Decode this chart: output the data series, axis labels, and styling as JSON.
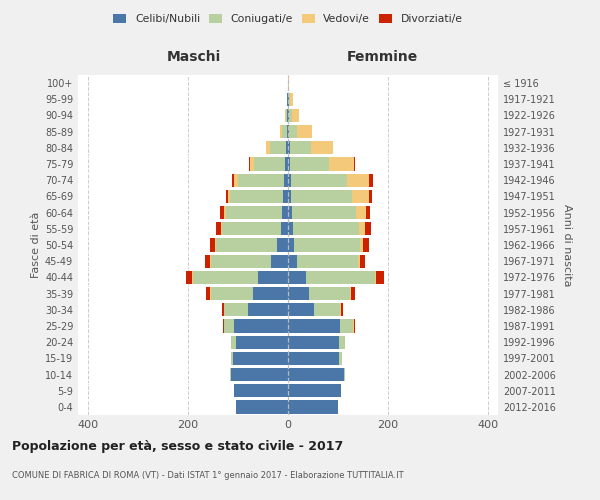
{
  "age_groups": [
    "0-4",
    "5-9",
    "10-14",
    "15-19",
    "20-24",
    "25-29",
    "30-34",
    "35-39",
    "40-44",
    "45-49",
    "50-54",
    "55-59",
    "60-64",
    "65-69",
    "70-74",
    "75-79",
    "80-84",
    "85-89",
    "90-94",
    "95-99",
    "100+"
  ],
  "birth_years": [
    "2012-2016",
    "2007-2011",
    "2002-2006",
    "1997-2001",
    "1992-1996",
    "1987-1991",
    "1982-1986",
    "1977-1981",
    "1972-1976",
    "1967-1971",
    "1962-1966",
    "1957-1961",
    "1952-1956",
    "1947-1951",
    "1942-1946",
    "1937-1941",
    "1932-1936",
    "1927-1931",
    "1922-1926",
    "1917-1921",
    "≤ 1916"
  ],
  "males": {
    "celibi": [
      105,
      108,
      115,
      110,
      105,
      108,
      80,
      70,
      60,
      35,
      22,
      15,
      13,
      10,
      8,
      6,
      4,
      3,
      2,
      2,
      0
    ],
    "coniugati": [
      0,
      1,
      2,
      5,
      10,
      20,
      48,
      85,
      130,
      120,
      122,
      118,
      112,
      107,
      92,
      62,
      32,
      9,
      3,
      0,
      0
    ],
    "vedovi": [
      0,
      0,
      0,
      0,
      0,
      0,
      1,
      1,
      2,
      2,
      2,
      2,
      3,
      3,
      8,
      8,
      8,
      4,
      2,
      0,
      0
    ],
    "divorziati": [
      0,
      0,
      0,
      0,
      0,
      2,
      3,
      8,
      12,
      10,
      10,
      10,
      8,
      5,
      5,
      2,
      0,
      0,
      0,
      0,
      0
    ]
  },
  "females": {
    "nubili": [
      100,
      105,
      112,
      102,
      102,
      103,
      52,
      42,
      35,
      18,
      12,
      10,
      8,
      5,
      5,
      4,
      3,
      2,
      2,
      2,
      0
    ],
    "coniugate": [
      0,
      1,
      2,
      5,
      12,
      27,
      52,
      82,
      138,
      122,
      132,
      132,
      127,
      122,
      112,
      77,
      42,
      15,
      5,
      2,
      0
    ],
    "vedove": [
      0,
      0,
      0,
      0,
      0,
      1,
      1,
      2,
      3,
      4,
      6,
      12,
      20,
      35,
      45,
      50,
      45,
      30,
      15,
      5,
      1
    ],
    "divorziate": [
      0,
      0,
      0,
      0,
      0,
      2,
      5,
      8,
      15,
      10,
      12,
      12,
      8,
      5,
      8,
      2,
      0,
      0,
      0,
      0,
      0
    ]
  },
  "colors": {
    "celibi_nubili": "#4a76a8",
    "coniugati": "#b8cfa0",
    "vedovi": "#f5c97a",
    "divorziati": "#cc2200"
  },
  "title": "Popolazione per età, sesso e stato civile - 2017",
  "subtitle": "COMUNE DI FABRICA DI ROMA (VT) - Dati ISTAT 1° gennaio 2017 - Elaborazione TUTTITALIA.IT",
  "xlabel_left": "Maschi",
  "xlabel_right": "Femmine",
  "ylabel_left": "Fasce di età",
  "ylabel_right": "Anni di nascita",
  "legend_labels": [
    "Celibi/Nubili",
    "Coniugati/e",
    "Vedovi/e",
    "Divorziati/e"
  ],
  "xlim": 420,
  "background_color": "#f0f0f0",
  "plot_bg_color": "#ffffff"
}
